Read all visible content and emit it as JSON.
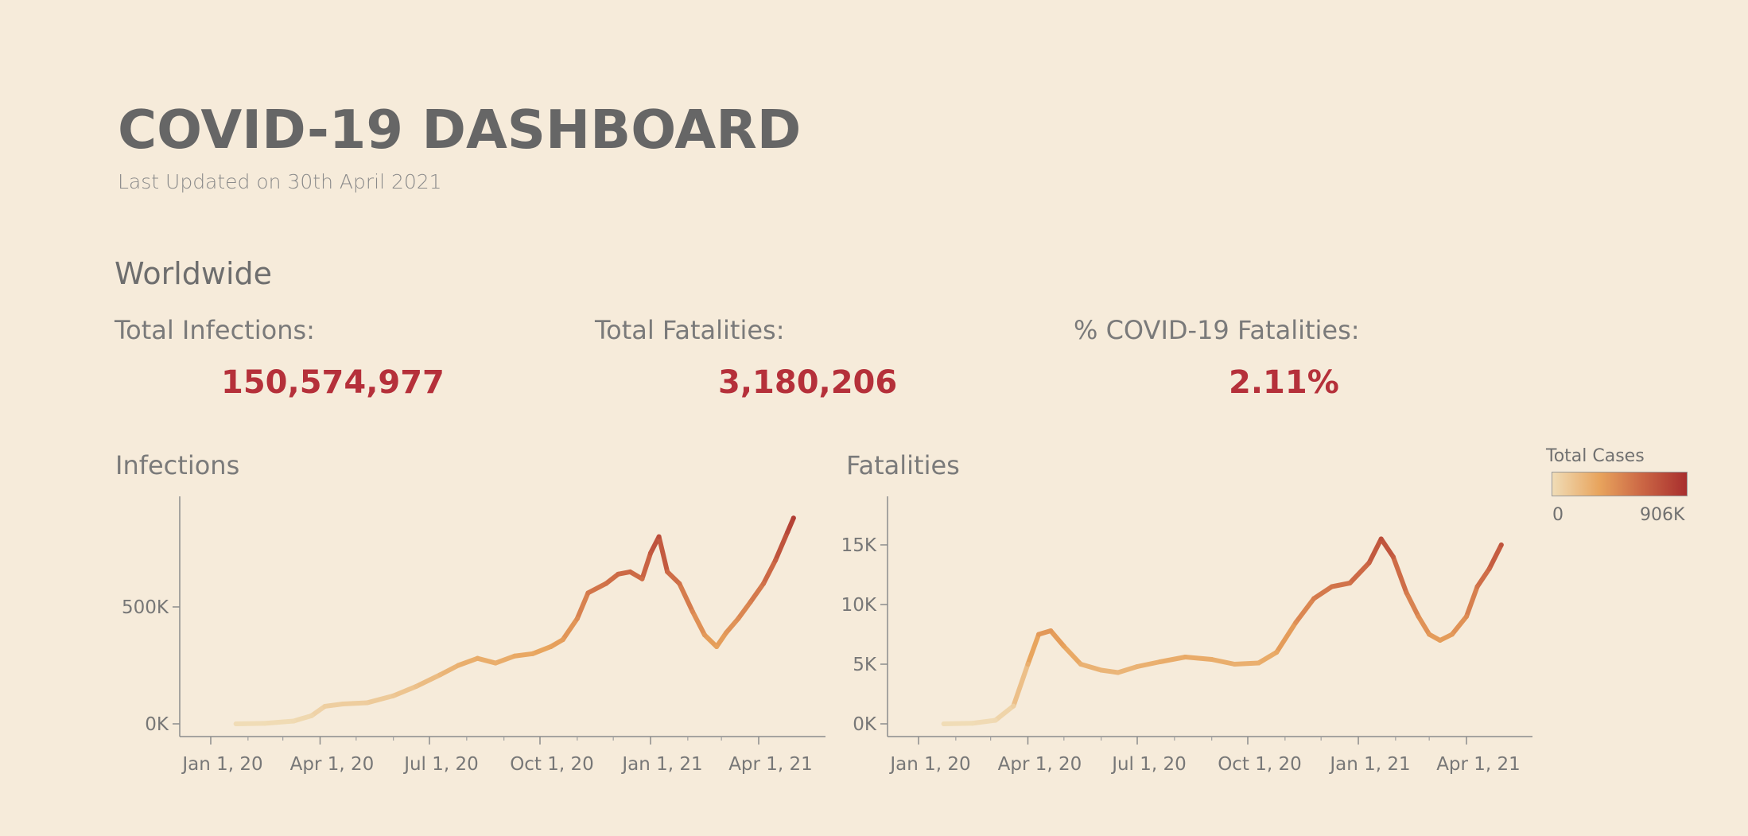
{
  "header": {
    "title": "COVID-19 DASHBOARD",
    "subtitle": "Last Updated on 30th April 2021"
  },
  "section_title": "Worldwide",
  "kpis": [
    {
      "label": "Total Infections:",
      "value": "150,574,977"
    },
    {
      "label": "Total Fatalities:",
      "value": "3,180,206"
    },
    {
      "label": "% COVID-19 Fatalities:",
      "value": "2.11%"
    }
  ],
  "legend": {
    "title": "Total Cases",
    "min_label": "0",
    "max_label": "906K",
    "colors": [
      "#f0dcb6",
      "#e8a45d",
      "#cd6a46",
      "#a82e2e"
    ]
  },
  "chart_data": [
    {
      "type": "line",
      "title": "Infections",
      "x_tick_labels": [
        "Jan 1, 20",
        "Apr 1, 20",
        "Jul 1, 20",
        "Oct 1, 20",
        "Jan 1, 21",
        "Apr 1, 21"
      ],
      "y_tick_labels": [
        "0K",
        "500K"
      ],
      "y_ticks": [
        0,
        500000
      ],
      "ylim": [
        0,
        960000
      ],
      "color_by": "Total Cases",
      "x": [
        "2020-01-22",
        "2020-02-15",
        "2020-03-10",
        "2020-03-25",
        "2020-04-05",
        "2020-04-20",
        "2020-05-10",
        "2020-06-01",
        "2020-06-20",
        "2020-07-10",
        "2020-07-25",
        "2020-08-10",
        "2020-08-25",
        "2020-09-10",
        "2020-09-25",
        "2020-10-10",
        "2020-10-20",
        "2020-11-01",
        "2020-11-10",
        "2020-11-25",
        "2020-12-05",
        "2020-12-15",
        "2020-12-25",
        "2021-01-01",
        "2021-01-08",
        "2021-01-15",
        "2021-01-25",
        "2021-02-05",
        "2021-02-15",
        "2021-02-25",
        "2021-03-05",
        "2021-03-15",
        "2021-03-25",
        "2021-04-05",
        "2021-04-15",
        "2021-04-25",
        "2021-04-30"
      ],
      "y": [
        0,
        2000,
        12000,
        35000,
        75000,
        85000,
        90000,
        120000,
        160000,
        210000,
        250000,
        280000,
        260000,
        290000,
        300000,
        330000,
        360000,
        450000,
        560000,
        600000,
        640000,
        650000,
        620000,
        730000,
        800000,
        650000,
        600000,
        480000,
        380000,
        330000,
        390000,
        450000,
        520000,
        600000,
        700000,
        820000,
        880000
      ]
    },
    {
      "type": "line",
      "title": "Fatalities",
      "x_tick_labels": [
        "Jan 1, 20",
        "Apr 1, 20",
        "Jul 1, 20",
        "Oct 1, 20",
        "Jan 1, 21",
        "Apr 1, 21"
      ],
      "y_tick_labels": [
        "0K",
        "5K",
        "10K",
        "15K"
      ],
      "y_ticks": [
        0,
        5000,
        10000,
        15000
      ],
      "ylim": [
        0,
        19000
      ],
      "color_by": "Total Cases",
      "x": [
        "2020-01-22",
        "2020-02-15",
        "2020-03-05",
        "2020-03-20",
        "2020-04-01",
        "2020-04-10",
        "2020-04-20",
        "2020-05-01",
        "2020-05-15",
        "2020-06-01",
        "2020-06-15",
        "2020-07-01",
        "2020-07-20",
        "2020-08-10",
        "2020-09-01",
        "2020-09-20",
        "2020-10-10",
        "2020-10-25",
        "2020-11-10",
        "2020-11-25",
        "2020-12-10",
        "2020-12-25",
        "2021-01-10",
        "2021-01-20",
        "2021-01-30",
        "2021-02-10",
        "2021-02-20",
        "2021-03-01",
        "2021-03-10",
        "2021-03-20",
        "2021-04-01",
        "2021-04-10",
        "2021-04-20",
        "2021-04-30"
      ],
      "y": [
        0,
        50,
        300,
        1500,
        5000,
        7500,
        7800,
        6500,
        5000,
        4500,
        4300,
        4800,
        5200,
        5600,
        5400,
        5000,
        5100,
        6000,
        8500,
        10500,
        11500,
        11800,
        13500,
        15500,
        14000,
        11000,
        9000,
        7500,
        7000,
        7500,
        9000,
        11500,
        13000,
        15000
      ]
    }
  ]
}
